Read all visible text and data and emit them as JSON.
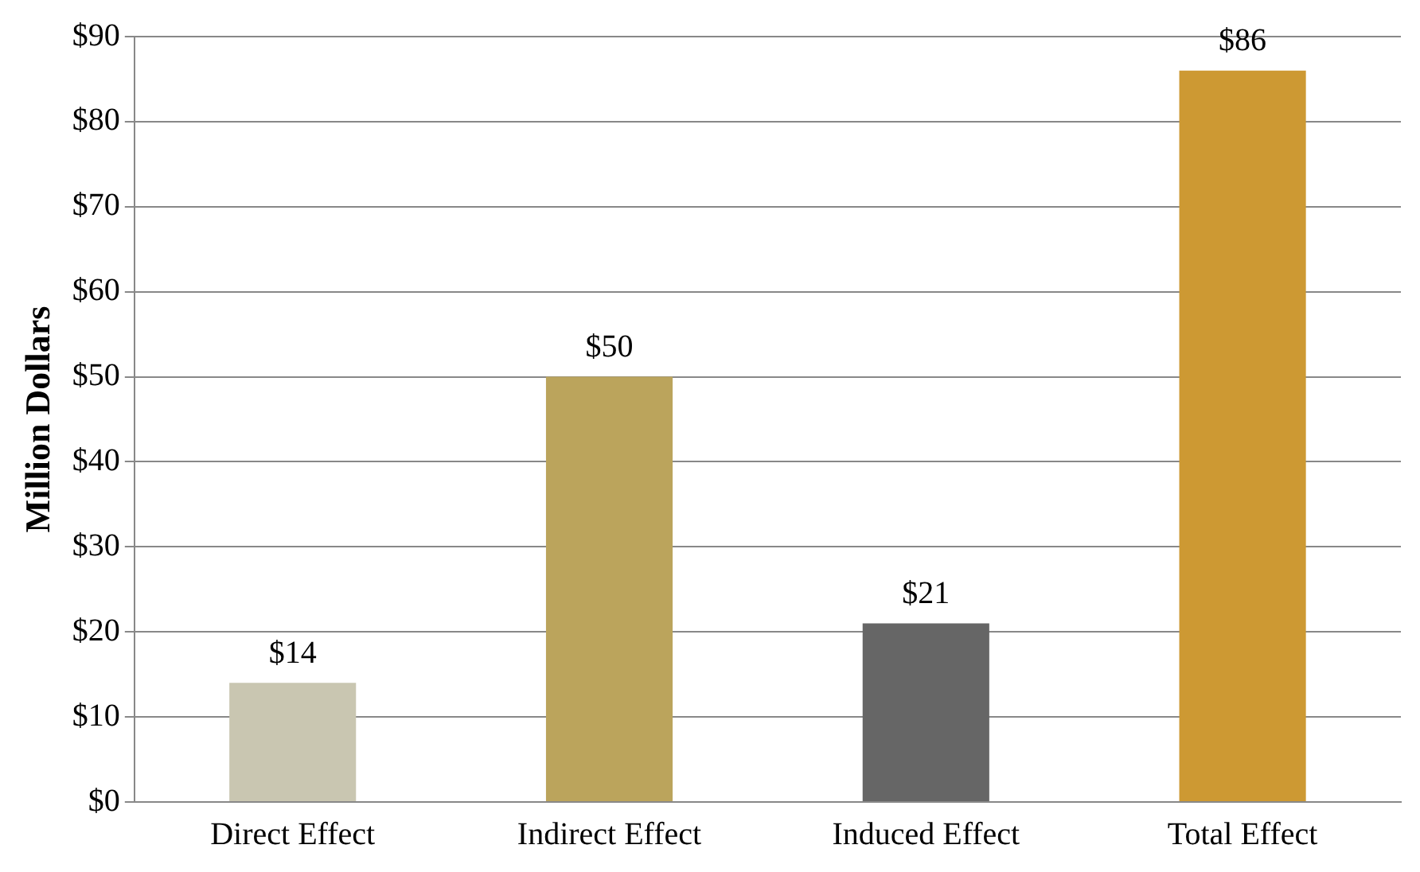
{
  "chart_data": {
    "type": "bar",
    "ylabel": "Million Dollars",
    "categories": [
      "Direct Effect",
      "Indirect Effect",
      "Induced Effect",
      "Total Effect"
    ],
    "values": [
      14,
      50,
      21,
      86
    ],
    "value_labels": [
      "$14",
      "$50",
      "$21",
      "$86"
    ],
    "colors": [
      "#c9c6b1",
      "#bba45c",
      "#666666",
      "#cd9933"
    ],
    "ylim": [
      0,
      90
    ],
    "yticks": [
      {
        "value": 0,
        "label": "$0"
      },
      {
        "value": 10,
        "label": "$10"
      },
      {
        "value": 20,
        "label": "$20"
      },
      {
        "value": 30,
        "label": "$30"
      },
      {
        "value": 40,
        "label": "$40"
      },
      {
        "value": 50,
        "label": "$50"
      },
      {
        "value": 60,
        "label": "$60"
      },
      {
        "value": 70,
        "label": "$70"
      },
      {
        "value": 80,
        "label": "$80"
      },
      {
        "value": 90,
        "label": "$90"
      }
    ],
    "grid": "y",
    "legend": false
  }
}
